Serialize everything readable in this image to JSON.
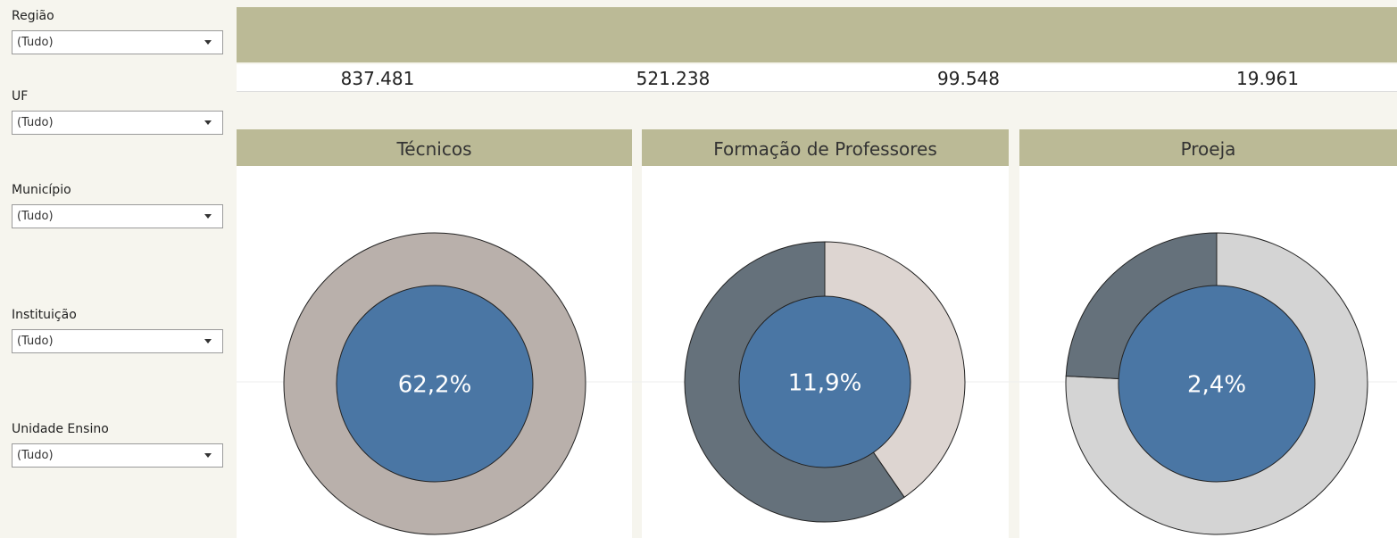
{
  "filters": [
    {
      "label": "Região",
      "value": "(Tudo)"
    },
    {
      "label": "UF",
      "value": "(Tudo)"
    },
    {
      "label": "Município",
      "value": "(Tudo)"
    },
    {
      "label": "Instituição",
      "value": "(Tudo)"
    },
    {
      "label": "Unidade Ensino",
      "value": "(Tudo)"
    }
  ],
  "totals": [
    "837.481",
    "521.238",
    "99.548",
    "19.961"
  ],
  "panels": [
    {
      "title": "Técnicos",
      "center_label": "62,2%",
      "center_color": "#4a76a4",
      "segments": [
        {
          "value": 100,
          "color": "#b9b0ab"
        }
      ]
    },
    {
      "title": "Formação de Professores",
      "center_label": "11,9%",
      "center_color": "#4a76a4",
      "segments": [
        {
          "value": 40.4,
          "color": "#ddd5d1"
        },
        {
          "value": 59.6,
          "color": "#65717b"
        }
      ]
    },
    {
      "title": "Proeja",
      "center_label": "2,4%",
      "center_color": "#4a76a4",
      "segments": [
        {
          "value": 75.8,
          "color": "#d4d4d4"
        },
        {
          "value": 24.2,
          "color": "#65717b"
        }
      ]
    }
  ]
}
